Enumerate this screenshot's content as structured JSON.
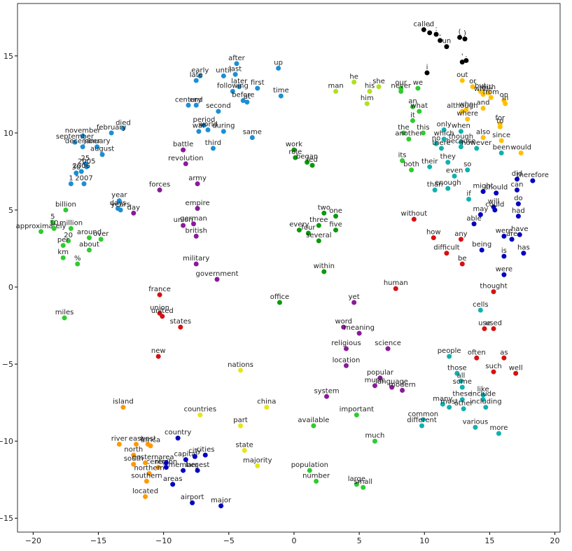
{
  "chart_data": {
    "type": "scatter",
    "xlim": [
      -21.2,
      20.4
    ],
    "ylim": [
      -15.9,
      18.4
    ],
    "xticks": [
      {
        "value": -20,
        "label": "−20"
      },
      {
        "value": -15,
        "label": "−15"
      },
      {
        "value": -10,
        "label": "−10"
      },
      {
        "value": -5,
        "label": "−5"
      },
      0,
      5,
      10,
      15,
      20
    ],
    "yticks": [
      {
        "value": -15,
        "label": "−15"
      },
      {
        "value": -10,
        "label": "−10"
      },
      {
        "value": -5,
        "label": "−5"
      },
      0,
      5,
      10,
      15
    ],
    "groups": [
      {
        "color": "#000000",
        "labels": [
          "called",
          "'",
          ":",
          "(",
          ")",
          "-",
          "un",
          "'",
          ".",
          "i"
        ],
        "x": [
          9.95,
          10.4,
          10.9,
          12.7,
          13.1,
          11.2,
          11.7,
          12.9,
          13.2,
          10.2
        ],
        "y": [
          16.7,
          16.5,
          16.4,
          16.2,
          16.1,
          16.0,
          15.6,
          14.6,
          14.7,
          13.9
        ]
      },
      {
        "color": "#1a8fd6",
        "labels": [
          "after",
          "up",
          "early",
          "late",
          "until",
          "last",
          "later",
          "first",
          "following",
          "before",
          "at",
          "time",
          "century",
          "end",
          "second",
          "period",
          "war",
          "world",
          "during",
          "same",
          "third",
          "died",
          "february",
          "november",
          "september",
          "december",
          "january",
          "august",
          "25",
          "2005",
          "2006",
          "30",
          "1",
          "2007",
          "year",
          "days",
          "years"
        ],
        "x": [
          -4.4,
          -1.2,
          -7.2,
          -7.5,
          -5.4,
          -4.5,
          -4.2,
          -2.8,
          -4.7,
          -3.9,
          -3.6,
          -1.0,
          -8.1,
          -7.5,
          -5.8,
          -6.9,
          -7.3,
          -6.6,
          -5.4,
          -3.2,
          -6.2,
          -13.1,
          -14.0,
          -16.2,
          -16.8,
          -16.2,
          -15.1,
          -14.7,
          -16.0,
          -15.9,
          -16.3,
          -16.7,
          -17.1,
          -16.1,
          -13.4,
          -13.5,
          -13.3
        ],
        "y": [
          14.5,
          14.2,
          13.7,
          13.4,
          13.7,
          13.8,
          13.0,
          12.9,
          12.7,
          12.1,
          12.0,
          12.4,
          11.8,
          11.8,
          11.4,
          10.5,
          10.1,
          10.2,
          10.1,
          9.7,
          9.0,
          10.3,
          10.0,
          9.8,
          9.4,
          9.1,
          9.1,
          8.6,
          8.0,
          7.8,
          7.5,
          7.4,
          6.7,
          6.7,
          5.6,
          5.1,
          5.0
        ]
      },
      {
        "color": "#0a9a0a",
        "labels": [
          "work",
          "role",
          "began",
          "led",
          "two",
          "one",
          "three",
          "five",
          "every",
          "four",
          "several",
          "within",
          "office"
        ],
        "x": [
          0.0,
          0.1,
          1.0,
          1.4,
          2.3,
          3.2,
          1.9,
          3.2,
          0.4,
          1.1,
          1.9,
          2.3,
          -1.1
        ],
        "y": [
          8.9,
          8.4,
          8.1,
          7.9,
          4.8,
          4.6,
          4.0,
          3.7,
          3.7,
          3.5,
          3.0,
          1.0,
          -1.0
        ]
      },
      {
        "color": "#2ecc2e",
        "labels": [
          "billion",
          "5",
          "million",
          "approximately",
          "10",
          "20",
          "per",
          "around",
          "over",
          "about",
          "km",
          "%",
          "miles",
          "our",
          "we",
          "never",
          "an",
          "what",
          "it",
          "the",
          "another",
          "this",
          "its",
          "both",
          "much",
          "available",
          "important",
          "number",
          "population",
          "large",
          "small"
        ],
        "x": [
          -17.5,
          -18.5,
          -17.1,
          -19.4,
          -18.4,
          -17.3,
          -17.7,
          -15.7,
          -14.8,
          -15.7,
          -17.7,
          -16.6,
          -17.6,
          8.2,
          9.5,
          8.2,
          9.1,
          9.6,
          9.1,
          8.4,
          8.8,
          9.9,
          8.3,
          9.0,
          6.2,
          1.5,
          4.8,
          1.7,
          1.2,
          4.8,
          5.3
        ],
        "y": [
          5.0,
          4.2,
          3.8,
          3.6,
          3.8,
          3.0,
          2.7,
          3.2,
          3.1,
          2.4,
          1.9,
          1.5,
          -2.0,
          12.9,
          12.9,
          12.7,
          11.7,
          11.4,
          10.8,
          10.0,
          9.6,
          10.0,
          8.2,
          7.6,
          -10.0,
          -9.0,
          -8.3,
          -12.6,
          -11.9,
          -12.8,
          -13.0
        ]
      },
      {
        "color": "#b0e020",
        "labels": [
          "man",
          "he",
          "his",
          "she",
          "him"
        ],
        "x": [
          3.2,
          4.6,
          5.8,
          6.5,
          5.6
        ],
        "y": [
          12.7,
          13.3,
          12.7,
          13.0,
          11.9
        ]
      },
      {
        "color": "#8a1a9a",
        "labels": [
          "battle",
          "revolution",
          "forces",
          "army",
          "empire",
          "german",
          "union",
          "british",
          "military",
          "government",
          "day",
          "yet",
          "word",
          "meaning",
          "religious",
          "science",
          "location",
          "popular",
          "music",
          "language",
          "modern",
          "system"
        ],
        "x": [
          -8.5,
          -8.3,
          -10.3,
          -7.4,
          -7.4,
          -7.7,
          -8.5,
          -7.5,
          -7.5,
          -5.9,
          -12.3,
          4.6,
          3.8,
          5.0,
          4.0,
          7.2,
          4.0,
          6.6,
          6.2,
          7.5,
          8.3,
          2.5
        ],
        "y": [
          8.9,
          8.0,
          6.3,
          6.7,
          5.1,
          4.1,
          4.0,
          3.3,
          1.5,
          0.5,
          4.8,
          -1.0,
          -2.6,
          -3.0,
          -4.0,
          -4.0,
          -5.1,
          -5.9,
          -6.4,
          -6.5,
          -6.7,
          -7.1
        ]
      },
      {
        "color": "#d81010",
        "labels": [
          "without",
          "how",
          "any",
          "difficult",
          "be",
          "human",
          "thought",
          "used",
          "use",
          "often",
          "as",
          "such",
          "well",
          "france",
          "union",
          "united",
          "states",
          "new"
        ],
        "x": [
          9.2,
          10.7,
          12.8,
          11.7,
          12.9,
          7.8,
          15.3,
          15.3,
          14.6,
          14.0,
          16.1,
          15.3,
          17.0,
          -10.3,
          -10.3,
          -10.1,
          -8.7,
          -10.4
        ],
        "y": [
          4.4,
          3.2,
          3.1,
          2.2,
          1.5,
          -0.1,
          -0.3,
          -2.7,
          -2.7,
          -4.6,
          -4.6,
          -5.5,
          -5.6,
          -0.5,
          -1.7,
          -1.9,
          -2.6,
          -4.5
        ]
      },
      {
        "color": "#e6e61a",
        "labels": [
          "nations",
          "countries",
          "part",
          "china",
          "state",
          "majority"
        ],
        "x": [
          -4.1,
          -7.2,
          -4.1,
          -2.1,
          -3.8,
          -2.8
        ],
        "y": [
          -5.4,
          -8.3,
          -9.0,
          -7.8,
          -10.6,
          -11.6
        ]
      },
      {
        "color": "#ff9900",
        "labels": [
          "island",
          "river",
          "east",
          "west",
          "africa",
          "north",
          "central",
          "south",
          "eastern",
          "northern",
          "southern",
          "located"
        ],
        "x": [
          -13.1,
          -13.4,
          -12.1,
          -11.2,
          -11.0,
          -12.3,
          -10.4,
          -12.3,
          -11.4,
          -11.1,
          -11.3,
          -11.4
        ],
        "y": [
          -7.8,
          -10.2,
          -10.2,
          -10.2,
          -10.3,
          -10.9,
          -11.7,
          -11.5,
          -11.4,
          -12.1,
          -12.6,
          -13.6
        ]
      },
      {
        "color": "#0000c0",
        "labels": [
          "country",
          "capital",
          "city",
          "cities",
          "region",
          "member",
          "largest",
          "area",
          "areas",
          "airport",
          "major",
          "did",
          "therefore",
          "can",
          "should",
          "might",
          "will",
          "do",
          "could",
          "may",
          "had",
          "able",
          "have",
          "were",
          "are",
          "has",
          "is",
          "being",
          "were"
        ],
        "x": [
          -8.9,
          -8.3,
          -7.6,
          -6.8,
          -9.8,
          -8.5,
          -7.4,
          -9.8,
          -9.3,
          -7.8,
          -5.6,
          17.1,
          18.3,
          17.1,
          15.5,
          14.5,
          15.3,
          17.2,
          15.4,
          14.3,
          17.2,
          13.8,
          17.3,
          16.1,
          16.7,
          17.6,
          16.1,
          14.4,
          16.1
        ],
        "y": [
          -9.8,
          -11.2,
          -11.0,
          -10.9,
          -11.7,
          -11.9,
          -11.9,
          -11.4,
          -12.8,
          -14.0,
          -14.2,
          7.0,
          6.9,
          6.3,
          6.1,
          6.2,
          5.2,
          5.4,
          5.0,
          4.7,
          4.6,
          4.1,
          3.4,
          3.3,
          3.1,
          2.2,
          2.0,
          2.4,
          0.8
        ]
      },
      {
        "color": "#ffc000",
        "labels": [
          "out",
          "or",
          "but",
          "with",
          "while",
          "from",
          "on",
          "in",
          "who",
          "and",
          "although",
          "where",
          "for",
          "to",
          "also",
          "since",
          "would"
        ],
        "x": [
          12.9,
          13.7,
          14.3,
          14.9,
          14.5,
          15.1,
          16.1,
          16.2,
          13.2,
          14.5,
          12.9,
          13.3,
          15.8,
          15.8,
          14.5,
          15.9,
          17.4
        ],
        "y": [
          13.4,
          13.0,
          12.7,
          12.6,
          12.5,
          12.3,
          12.1,
          11.9,
          11.5,
          11.6,
          11.4,
          10.9,
          10.6,
          10.4,
          9.7,
          9.5,
          8.7
        ]
      },
      {
        "color": "#10b0b0",
        "labels": [
          "only",
          "when",
          "which",
          "though",
          "no",
          "there",
          "because",
          "however",
          "they",
          "their",
          "so",
          "even",
          "been",
          "enough",
          "than",
          "if",
          "cells",
          "people",
          "those",
          "all",
          "some",
          "like",
          "these",
          "include",
          "many",
          "most",
          "other",
          "including",
          "common",
          "different",
          "various",
          "more"
        ],
        "x": [
          11.5,
          12.8,
          11.5,
          12.8,
          10.9,
          11.3,
          12.8,
          14.0,
          11.8,
          10.4,
          13.3,
          12.3,
          15.9,
          11.8,
          10.8,
          13.4,
          14.3,
          11.9,
          12.5,
          12.8,
          12.9,
          14.5,
          12.9,
          14.5,
          11.4,
          11.9,
          13.0,
          14.7,
          9.9,
          9.8,
          13.9,
          15.7
        ],
        "y": [
          10.2,
          10.1,
          9.6,
          9.4,
          9.3,
          9.0,
          9.1,
          9.0,
          8.1,
          7.8,
          7.6,
          7.2,
          8.7,
          6.4,
          6.3,
          5.7,
          -1.5,
          -4.5,
          -5.6,
          -6.1,
          -6.5,
          -7.0,
          -7.3,
          -7.3,
          -7.6,
          -7.8,
          -7.9,
          -7.8,
          -8.6,
          -9.0,
          -9.1,
          -9.5
        ]
      }
    ]
  }
}
